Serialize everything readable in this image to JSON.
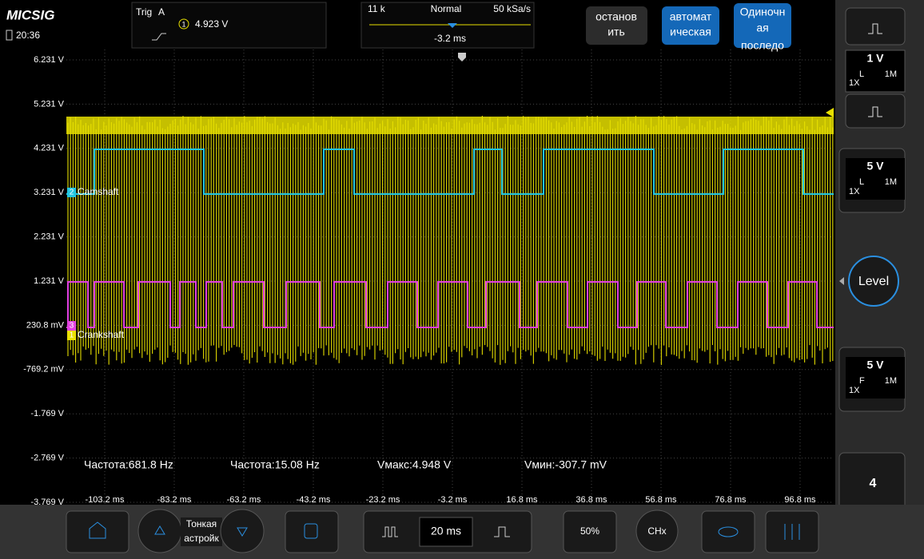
{
  "status": {
    "brand": "MICSIG",
    "time": "20:36"
  },
  "trigger": {
    "label": "Trig",
    "source": "A",
    "channel": "1",
    "level": "4.923 V"
  },
  "acquisition": {
    "points": "11 k",
    "mode": "Normal",
    "rate": "50 kSa/s",
    "offset": "-3.2 ms"
  },
  "buttons": {
    "stop": [
      "останов",
      "ить"
    ],
    "auto": [
      "автомат",
      "ическая"
    ],
    "single": [
      "Одиночн",
      "ая",
      "последо"
    ]
  },
  "y_labels": [
    "6.231 V",
    "5.231 V",
    "4.231 V",
    "3.231 V",
    "2.231 V",
    "1.231 V",
    "230.8 mV",
    "-769.2 mV",
    "-1.769 V",
    "-2.769 V",
    "-3.769 V"
  ],
  "x_labels": [
    "-103.2 ms",
    "-83.2 ms",
    "-63.2 ms",
    "-43.2 ms",
    "-23.2 ms",
    "-3.2 ms",
    "16.8 ms",
    "36.8 ms",
    "56.8 ms",
    "76.8 ms",
    "96.8 ms"
  ],
  "channels": [
    {
      "marker": "2",
      "name": "Camshaft"
    },
    {
      "marker": "3",
      "name": ""
    },
    {
      "marker": "1",
      "name": "Crankshaft"
    }
  ],
  "measurements": [
    "Частота:681.8 Hz",
    "Частота:15.08 Hz",
    "Vмакс:4.948 V",
    "Vмин:-307.7 mV"
  ],
  "side_panel": {
    "ch1": {
      "scale": "1 V",
      "coupling": "L",
      "impedance": "1M",
      "probe": "1X"
    },
    "ch2": {
      "scale": "5 V",
      "coupling": "L",
      "impedance": "1M",
      "probe": "1X"
    },
    "level": "Level",
    "ch3": {
      "scale": "5 V",
      "coupling": "F",
      "impedance": "1M",
      "probe": "1X"
    },
    "ch4": "4"
  },
  "bottom_bar": {
    "fine": [
      "Тонкая",
      "астройк"
    ],
    "timebase": "20 ms",
    "half": "50%",
    "chx": "CHx"
  }
}
